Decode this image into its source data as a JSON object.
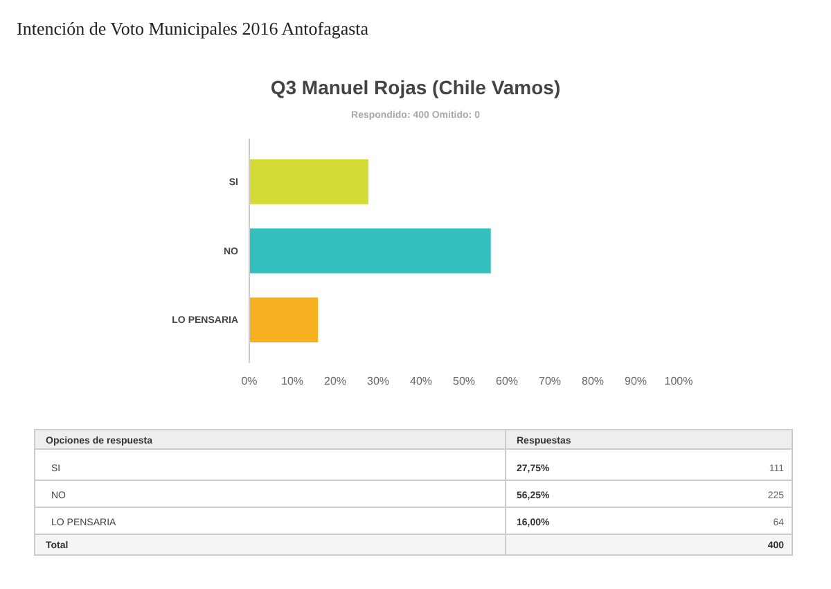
{
  "chart_data": {
    "type": "bar",
    "orientation": "horizontal",
    "title": "Q3 Manuel Rojas (Chile Vamos)",
    "subtitle": "Respondido: 400   Omitido: 0",
    "categories": [
      "SI",
      "NO",
      "LO PENSARIA"
    ],
    "values": [
      27.75,
      56.25,
      16
    ],
    "colors": [
      "#d3dc37",
      "#35bfbf",
      "#f8b020"
    ],
    "xlim": [
      0,
      100
    ],
    "xticks": [
      {
        "value": 0,
        "label": "0%"
      },
      {
        "value": 10,
        "label": "10%"
      },
      {
        "value": 20,
        "label": "20%"
      },
      {
        "value": 30,
        "label": "30%"
      },
      {
        "value": 40,
        "label": "40%"
      },
      {
        "value": 50,
        "label": "50%"
      },
      {
        "value": 60,
        "label": "60%"
      },
      {
        "value": 70,
        "label": "70%"
      },
      {
        "value": 80,
        "label": "80%"
      },
      {
        "value": 90,
        "label": "90%"
      },
      {
        "value": 100,
        "label": "100%"
      }
    ],
    "grid": false,
    "annotations": [
      "Intención de Voto Municipales 2016 Antofagasta",
      "Opciones de respuesta",
      "Respuestas",
      "27,75%",
      "56,25%",
      "16,00%",
      "111",
      "225",
      "64",
      "Total",
      "400"
    ]
  }
}
